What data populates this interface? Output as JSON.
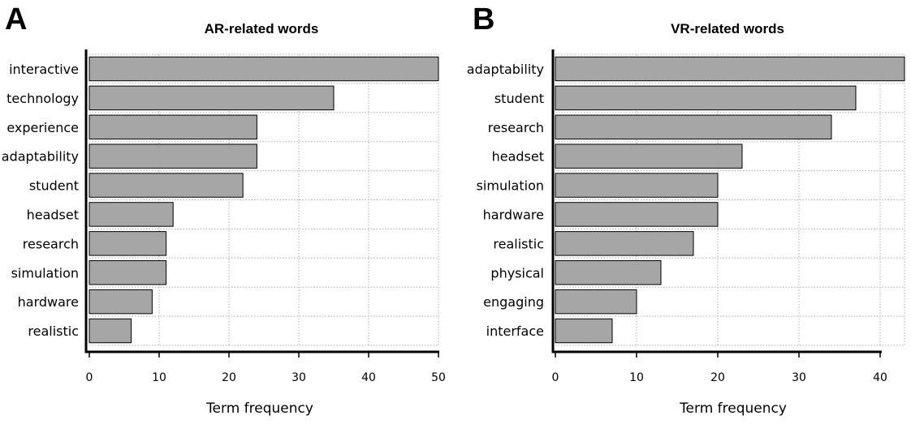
{
  "colors": {
    "bar_fill": "#a6a6a6",
    "bar_stroke": "#000000",
    "grid": "#b0b0b0"
  },
  "chart_data": [
    {
      "type": "bar",
      "orientation": "horizontal",
      "panel_label": "A",
      "title": "AR-related words",
      "xlabel": "Term frequency",
      "ylabel": "",
      "categories": [
        "interactive",
        "technology",
        "experience",
        "adaptability",
        "student",
        "headset",
        "research",
        "simulation",
        "hardware",
        "realistic"
      ],
      "values": [
        50,
        35,
        24,
        24,
        22,
        12,
        11,
        11,
        9,
        6
      ],
      "xlim": [
        0,
        50
      ],
      "xticks": [
        0,
        10,
        20,
        30,
        40,
        50
      ],
      "grid": true
    },
    {
      "type": "bar",
      "orientation": "horizontal",
      "panel_label": "B",
      "title": "VR-related words",
      "xlabel": "Term frequency",
      "ylabel": "",
      "categories": [
        "adaptability",
        "student",
        "research",
        "headset",
        "simulation",
        "hardware",
        "realistic",
        "physical",
        "engaging",
        "interface"
      ],
      "values": [
        43,
        37,
        34,
        23,
        20,
        20,
        17,
        13,
        10,
        7
      ],
      "xlim": [
        0,
        43
      ],
      "xticks": [
        0,
        10,
        20,
        30,
        40
      ],
      "grid": true
    }
  ]
}
